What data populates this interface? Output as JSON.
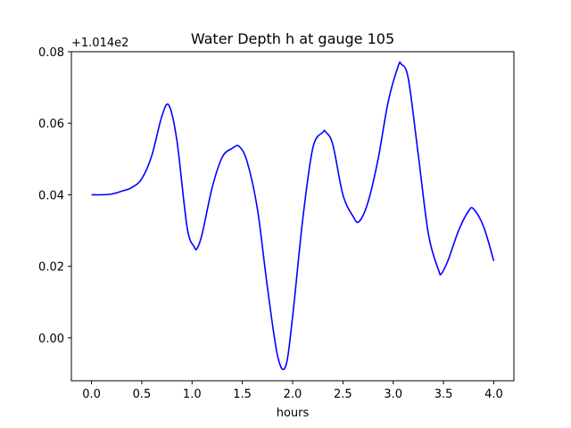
{
  "chart_data": {
    "type": "line",
    "title": "Water Depth h at gauge 105",
    "xlabel": "hours",
    "ylabel": "",
    "y_offset_label": "+1.014e2",
    "xlim": [
      -0.2,
      4.2
    ],
    "ylim": [
      -0.012,
      0.08
    ],
    "xticks": [
      0.0,
      0.5,
      1.0,
      1.5,
      2.0,
      2.5,
      3.0,
      3.5,
      4.0
    ],
    "xtick_labels": [
      "0.0",
      "0.5",
      "1.0",
      "1.5",
      "2.0",
      "2.5",
      "3.0",
      "3.5",
      "4.0"
    ],
    "yticks": [
      0.0,
      0.02,
      0.04,
      0.06,
      0.08
    ],
    "ytick_labels": [
      "0.00",
      "0.02",
      "0.04",
      "0.06",
      "0.08"
    ],
    "grid": false,
    "series": [
      {
        "color": "#0000ff",
        "x": [
          0.0,
          0.1,
          0.2,
          0.3,
          0.4,
          0.5,
          0.6,
          0.7,
          0.77,
          0.85,
          0.95,
          1.02,
          1.05,
          1.1,
          1.2,
          1.3,
          1.4,
          1.47,
          1.55,
          1.65,
          1.75,
          1.85,
          1.93,
          2.0,
          2.1,
          2.2,
          2.3,
          2.33,
          2.4,
          2.5,
          2.6,
          2.66,
          2.75,
          2.85,
          2.95,
          3.05,
          3.08,
          3.15,
          3.25,
          3.35,
          3.45,
          3.48,
          3.55,
          3.65,
          3.75,
          3.8,
          3.9,
          4.0
        ],
        "y": [
          0.04,
          0.04,
          0.0402,
          0.041,
          0.042,
          0.0445,
          0.051,
          0.062,
          0.065,
          0.055,
          0.031,
          0.0255,
          0.025,
          0.029,
          0.042,
          0.0505,
          0.053,
          0.0535,
          0.049,
          0.036,
          0.014,
          -0.005,
          -0.008,
          0.006,
          0.033,
          0.053,
          0.0575,
          0.0575,
          0.054,
          0.04,
          0.034,
          0.0325,
          0.038,
          0.05,
          0.066,
          0.076,
          0.0765,
          0.0725,
          0.051,
          0.029,
          0.019,
          0.018,
          0.022,
          0.03,
          0.0355,
          0.036,
          0.031,
          0.0215
        ]
      }
    ]
  }
}
